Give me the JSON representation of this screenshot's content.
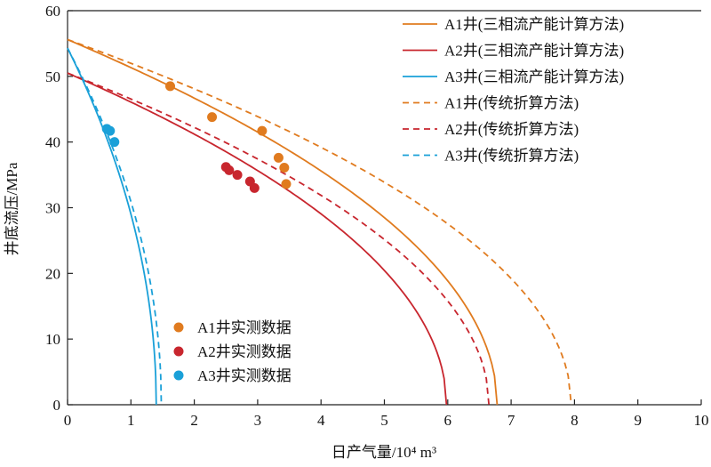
{
  "chart_data": {
    "type": "scatter",
    "xlabel": "日产气量/10⁴ m³",
    "ylabel": "井底流压/MPa",
    "xlim": [
      0,
      10
    ],
    "ylim": [
      0,
      60
    ],
    "xticks": [
      0,
      1,
      2,
      3,
      4,
      5,
      6,
      7,
      8,
      9,
      10
    ],
    "yticks": [
      0,
      10,
      20,
      30,
      40,
      50,
      60
    ],
    "grid": false,
    "colors": {
      "A1": "#e07b1f",
      "A2": "#c8262e",
      "A3": "#1aa0d8"
    },
    "curves": [
      {
        "name": "A1井(三相流产能计算方法)",
        "well": "A1",
        "style": "solid",
        "p0": 55.6,
        "qmax": 6.78
      },
      {
        "name": "A2井(三相流产能计算方法)",
        "well": "A2",
        "style": "solid",
        "p0": 50.5,
        "qmax": 5.98
      },
      {
        "name": "A3井(三相流产能计算方法)",
        "well": "A3",
        "style": "solid",
        "p0": 54.3,
        "qmax": 1.4
      },
      {
        "name": "A1井(传统折算方法)",
        "well": "A1",
        "style": "dashed",
        "p0": 55.6,
        "qmax": 7.95
      },
      {
        "name": "A2井(传统折算方法)",
        "well": "A2",
        "style": "dashed",
        "p0": 50.5,
        "qmax": 6.65
      },
      {
        "name": "A3井(传统折算方法)",
        "well": "A3",
        "style": "dashed",
        "p0": 54.3,
        "qmax": 1.48
      }
    ],
    "points": [
      {
        "name": "A1井实测数据",
        "well": "A1",
        "data": [
          [
            1.62,
            48.5
          ],
          [
            2.28,
            43.8
          ],
          [
            3.07,
            41.7
          ],
          [
            3.33,
            37.6
          ],
          [
            3.42,
            36.1
          ],
          [
            3.45,
            33.6
          ]
        ]
      },
      {
        "name": "A2井实测数据",
        "well": "A2",
        "data": [
          [
            2.5,
            36.2
          ],
          [
            2.55,
            35.7
          ],
          [
            2.68,
            35.0
          ],
          [
            2.88,
            34.0
          ],
          [
            2.95,
            33.0
          ]
        ]
      },
      {
        "name": "A3井实测数据",
        "well": "A3",
        "data": [
          [
            0.62,
            42.0
          ],
          [
            0.67,
            41.7
          ],
          [
            0.74,
            40.0
          ]
        ]
      }
    ]
  }
}
